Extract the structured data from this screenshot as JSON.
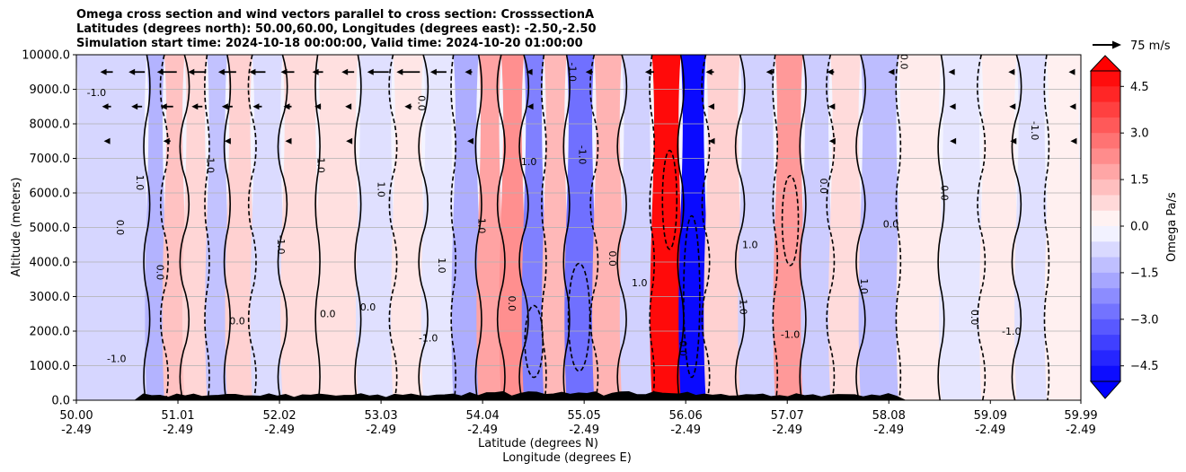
{
  "title": {
    "line1": "Omega cross section and wind vectors parallel to cross section: CrosssectionA",
    "line2": "Latitudes (degrees north): 50.00,60.00, Longitudes (degrees east): -2.50,-2.50",
    "line3": "Simulation start time: 2024-10-18 00:00:00, Valid time: 2024-10-20 01:00:00"
  },
  "reference_vector": {
    "label": "75 m/s"
  },
  "colorbar": {
    "label": "Omega Pa/s",
    "ticks": [
      "4.5",
      "3.0",
      "1.5",
      "0.0",
      "−1.5",
      "−3.0",
      "−4.5"
    ],
    "tick_values": [
      4.5,
      3.0,
      1.5,
      0.0,
      -1.5,
      -3.0,
      -4.5
    ],
    "vmin": -5.0,
    "vmax": 5.0,
    "extend": "both",
    "colormap": "bwr",
    "low_color": "#0000ff",
    "high_color": "#ff0000"
  },
  "contour_labels": [
    "-1.0",
    "0.0",
    "1.0"
  ],
  "chart_data": {
    "type": "heatmap",
    "title": "Omega cross section and wind vectors parallel to cross section: CrosssectionA",
    "xlabel": "Latitude (degrees N)",
    "xlabel2": "Longitude (degrees E)",
    "ylabel": "Altitude (meters)",
    "x_ticks_lat": [
      "50.00",
      "51.01",
      "52.02",
      "53.03",
      "54.04",
      "55.05",
      "56.06",
      "57.07",
      "58.08",
      "59.09",
      "59.99"
    ],
    "x_ticks_lon": [
      "-2.49",
      "-2.49",
      "-2.49",
      "-2.49",
      "-2.49",
      "-2.49",
      "-2.49",
      "-2.49",
      "-2.49",
      "-2.49",
      "-2.49"
    ],
    "x_tick_values": [
      50.0,
      51.01,
      52.02,
      53.03,
      54.04,
      55.05,
      56.06,
      57.07,
      58.08,
      59.09,
      59.99
    ],
    "xlim": [
      50.0,
      59.99
    ],
    "y_ticks": [
      "0.0",
      "1000.0",
      "2000.0",
      "3000.0",
      "4000.0",
      "5000.0",
      "6000.0",
      "7000.0",
      "8000.0",
      "9000.0",
      "10000.0"
    ],
    "y_tick_values": [
      0,
      1000,
      2000,
      3000,
      4000,
      5000,
      6000,
      7000,
      8000,
      9000,
      10000
    ],
    "ylim": [
      0,
      10000
    ],
    "grid": true,
    "omega_bands": [
      {
        "lat": 50.6,
        "omega": -0.8
      },
      {
        "lat": 50.8,
        "omega": -1.5
      },
      {
        "lat": 50.95,
        "omega": 1.2
      },
      {
        "lat": 51.2,
        "omega": 0.8
      },
      {
        "lat": 51.4,
        "omega": -1.2
      },
      {
        "lat": 51.6,
        "omega": 0.9
      },
      {
        "lat": 51.9,
        "omega": -0.7
      },
      {
        "lat": 52.2,
        "omega": 0.7
      },
      {
        "lat": 52.6,
        "omega": 0.6
      },
      {
        "lat": 53.0,
        "omega": -0.6
      },
      {
        "lat": 53.3,
        "omega": 0.5
      },
      {
        "lat": 53.6,
        "omega": -0.5
      },
      {
        "lat": 53.9,
        "omega": -1.6
      },
      {
        "lat": 54.1,
        "omega": 1.8
      },
      {
        "lat": 54.35,
        "omega": 2.2
      },
      {
        "lat": 54.55,
        "omega": -2.5
      },
      {
        "lat": 54.75,
        "omega": 1.4
      },
      {
        "lat": 55.0,
        "omega": -2.8
      },
      {
        "lat": 55.3,
        "omega": 1.5
      },
      {
        "lat": 55.55,
        "omega": -0.9
      },
      {
        "lat": 55.9,
        "omega": 4.8
      },
      {
        "lat": 56.12,
        "omega": -4.8
      },
      {
        "lat": 56.4,
        "omega": 0.9
      },
      {
        "lat": 56.8,
        "omega": -0.9
      },
      {
        "lat": 57.1,
        "omega": 2.0
      },
      {
        "lat": 57.35,
        "omega": -1.0
      },
      {
        "lat": 57.65,
        "omega": 0.7
      },
      {
        "lat": 57.95,
        "omega": -1.3
      },
      {
        "lat": 58.4,
        "omega": 0.4
      },
      {
        "lat": 58.8,
        "omega": -0.5
      },
      {
        "lat": 59.2,
        "omega": 0.4
      },
      {
        "lat": 59.5,
        "omega": -0.6
      },
      {
        "lat": 59.8,
        "omega": 0.3
      }
    ],
    "wind_vectors": [
      {
        "lat": 50.3,
        "alt": 9500,
        "u": -14
      },
      {
        "lat": 50.6,
        "alt": 9500,
        "u": -18
      },
      {
        "lat": 50.9,
        "alt": 9500,
        "u": -22
      },
      {
        "lat": 51.2,
        "alt": 9500,
        "u": -20
      },
      {
        "lat": 51.5,
        "alt": 9500,
        "u": -20
      },
      {
        "lat": 51.8,
        "alt": 9500,
        "u": -18
      },
      {
        "lat": 52.1,
        "alt": 9500,
        "u": -15
      },
      {
        "lat": 52.4,
        "alt": 9500,
        "u": -12
      },
      {
        "lat": 52.7,
        "alt": 9500,
        "u": -14
      },
      {
        "lat": 53.0,
        "alt": 9500,
        "u": -24
      },
      {
        "lat": 53.3,
        "alt": 9500,
        "u": -26
      },
      {
        "lat": 53.6,
        "alt": 9500,
        "u": -18
      },
      {
        "lat": 53.9,
        "alt": 9500,
        "u": -8
      },
      {
        "lat": 54.5,
        "alt": 9500,
        "u": -6
      },
      {
        "lat": 55.1,
        "alt": 9500,
        "u": -8
      },
      {
        "lat": 55.7,
        "alt": 9500,
        "u": -10
      },
      {
        "lat": 56.3,
        "alt": 9500,
        "u": -9
      },
      {
        "lat": 56.9,
        "alt": 9500,
        "u": -9
      },
      {
        "lat": 57.5,
        "alt": 9500,
        "u": -8
      },
      {
        "lat": 58.1,
        "alt": 9500,
        "u": -6
      },
      {
        "lat": 58.7,
        "alt": 9500,
        "u": -6
      },
      {
        "lat": 59.3,
        "alt": 9500,
        "u": -7
      },
      {
        "lat": 59.9,
        "alt": 9500,
        "u": -7
      },
      {
        "lat": 50.3,
        "alt": 8500,
        "u": -10
      },
      {
        "lat": 50.6,
        "alt": 8500,
        "u": -12
      },
      {
        "lat": 50.9,
        "alt": 8500,
        "u": -14
      },
      {
        "lat": 51.2,
        "alt": 8500,
        "u": -12
      },
      {
        "lat": 51.5,
        "alt": 8500,
        "u": -12
      },
      {
        "lat": 51.8,
        "alt": 8500,
        "u": -10
      },
      {
        "lat": 52.1,
        "alt": 8500,
        "u": -9
      },
      {
        "lat": 52.4,
        "alt": 8500,
        "u": -7
      },
      {
        "lat": 52.7,
        "alt": 8500,
        "u": -6
      },
      {
        "lat": 53.3,
        "alt": 8500,
        "u": -8
      },
      {
        "lat": 54.5,
        "alt": 8500,
        "u": -4
      },
      {
        "lat": 56.3,
        "alt": 8500,
        "u": -4
      },
      {
        "lat": 57.5,
        "alt": 8500,
        "u": -4
      },
      {
        "lat": 58.7,
        "alt": 8500,
        "u": -4
      },
      {
        "lat": 59.3,
        "alt": 8500,
        "u": -5
      },
      {
        "lat": 59.9,
        "alt": 8500,
        "u": -5
      },
      {
        "lat": 50.3,
        "alt": 7500,
        "u": -6
      },
      {
        "lat": 50.9,
        "alt": 7500,
        "u": -8
      },
      {
        "lat": 51.5,
        "alt": 7500,
        "u": -6
      },
      {
        "lat": 52.1,
        "alt": 7500,
        "u": -5
      },
      {
        "lat": 52.7,
        "alt": 7500,
        "u": -4
      },
      {
        "lat": 53.9,
        "alt": 7500,
        "u": -3
      },
      {
        "lat": 56.3,
        "alt": 7500,
        "u": -3
      },
      {
        "lat": 57.5,
        "alt": 7500,
        "u": -3
      },
      {
        "lat": 58.7,
        "alt": 7500,
        "u": -3
      },
      {
        "lat": 59.3,
        "alt": 7500,
        "u": -3
      },
      {
        "lat": 59.9,
        "alt": 7500,
        "u": -3
      }
    ]
  }
}
